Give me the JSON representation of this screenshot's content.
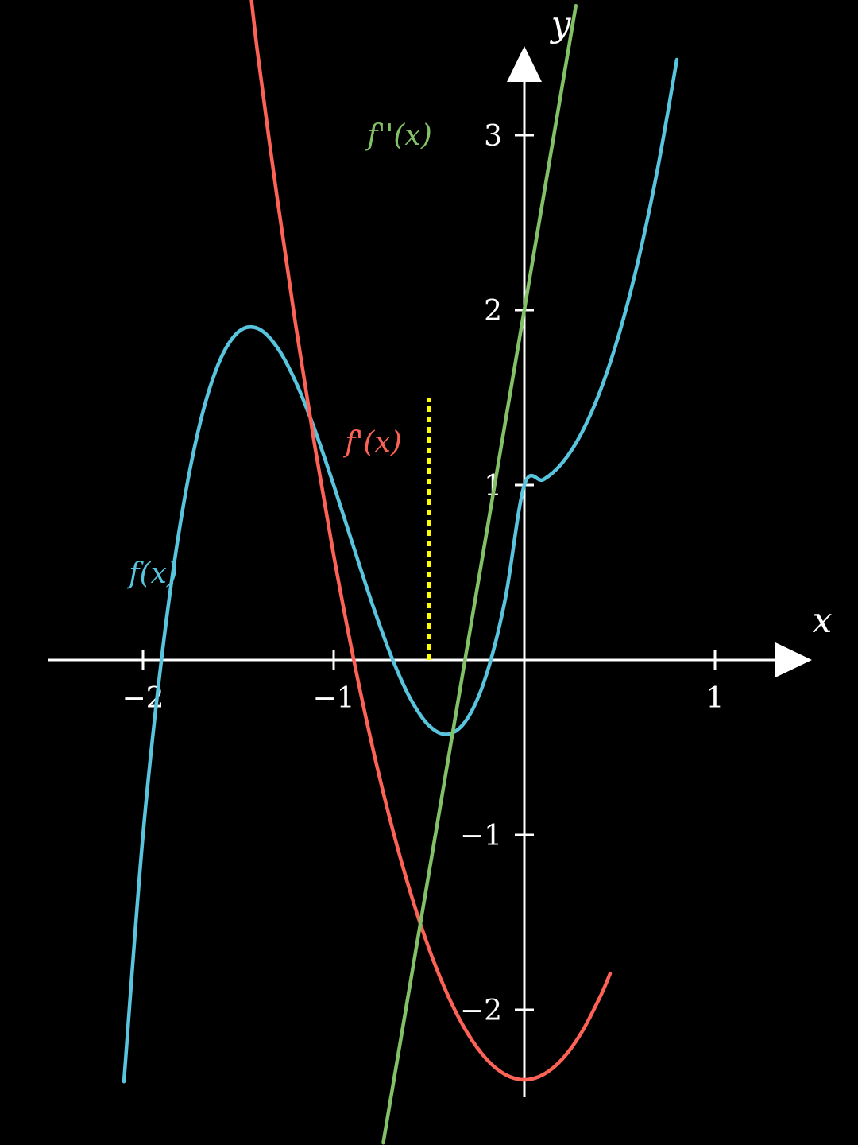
{
  "chart_data": {
    "type": "line",
    "background": "#000000",
    "axis_color": "#ffffff",
    "xlabel": "x",
    "ylabel": "y",
    "xlim": [
      -2.5,
      1.5
    ],
    "ylim": [
      -2.8,
      3.7
    ],
    "x_ticks": [
      -2,
      -1,
      1
    ],
    "x_tick_labels": [
      "−2",
      "−1",
      "1"
    ],
    "y_ticks": [
      -2,
      -1,
      1,
      2,
      3
    ],
    "y_tick_labels": [
      "−2",
      "−1",
      "1",
      "2",
      "3"
    ],
    "grid": false,
    "series": [
      {
        "name": "f(x)",
        "color": "#58c4dd",
        "x": [
          -2.1,
          -2.0,
          -1.9,
          -1.8,
          -1.7,
          -1.6,
          -1.5,
          -1.4,
          -1.3,
          -1.2,
          -1.1,
          -1.0,
          -0.9,
          -0.8,
          -0.7,
          -0.6,
          -0.5,
          -0.4,
          -0.3,
          -0.2,
          -0.1,
          0.0,
          0.1,
          0.2,
          0.3,
          0.4,
          0.5,
          0.6,
          0.7,
          0.8
        ],
        "y": [
          -2.41,
          -1.0,
          0.031,
          0.808,
          1.357,
          1.704,
          1.875,
          1.896,
          1.793,
          1.592,
          1.319,
          1.0,
          0.661,
          0.328,
          0.027,
          -0.216,
          -0.375,
          -0.424,
          -0.337,
          -0.088,
          0.349,
          1.0,
          1.031,
          1.128,
          1.297,
          1.544,
          1.875,
          2.296,
          2.813,
          3.432
        ]
      },
      {
        "name": "f'(x)",
        "color": "#fc6255",
        "x": [
          -1.45,
          -1.4,
          -1.3,
          -1.2,
          -1.1,
          -1.0,
          -0.9,
          -0.8,
          -0.7,
          -0.6,
          -0.5,
          -0.4,
          -0.3,
          -0.2,
          -0.1,
          0.0,
          0.1,
          0.2,
          0.3,
          0.4,
          0.45
        ],
        "y": [
          3.9675,
          3.48,
          2.67,
          1.92,
          1.23,
          0.6,
          0.03,
          -0.48,
          -0.93,
          -1.32,
          -1.65,
          -1.92,
          -2.13,
          -2.28,
          -2.37,
          -2.4,
          -2.37,
          -2.28,
          -2.13,
          -1.92,
          -1.7925
        ]
      },
      {
        "name": "f''(x)",
        "color": "#83c167",
        "x": [
          -0.74,
          0.27
        ],
        "y": [
          -2.76,
          3.74
        ]
      }
    ],
    "annotations": [
      {
        "type": "dashed-vertical",
        "color": "#ffff00",
        "x": -0.5,
        "y_from": 0,
        "y_to": 1.5
      }
    ]
  }
}
